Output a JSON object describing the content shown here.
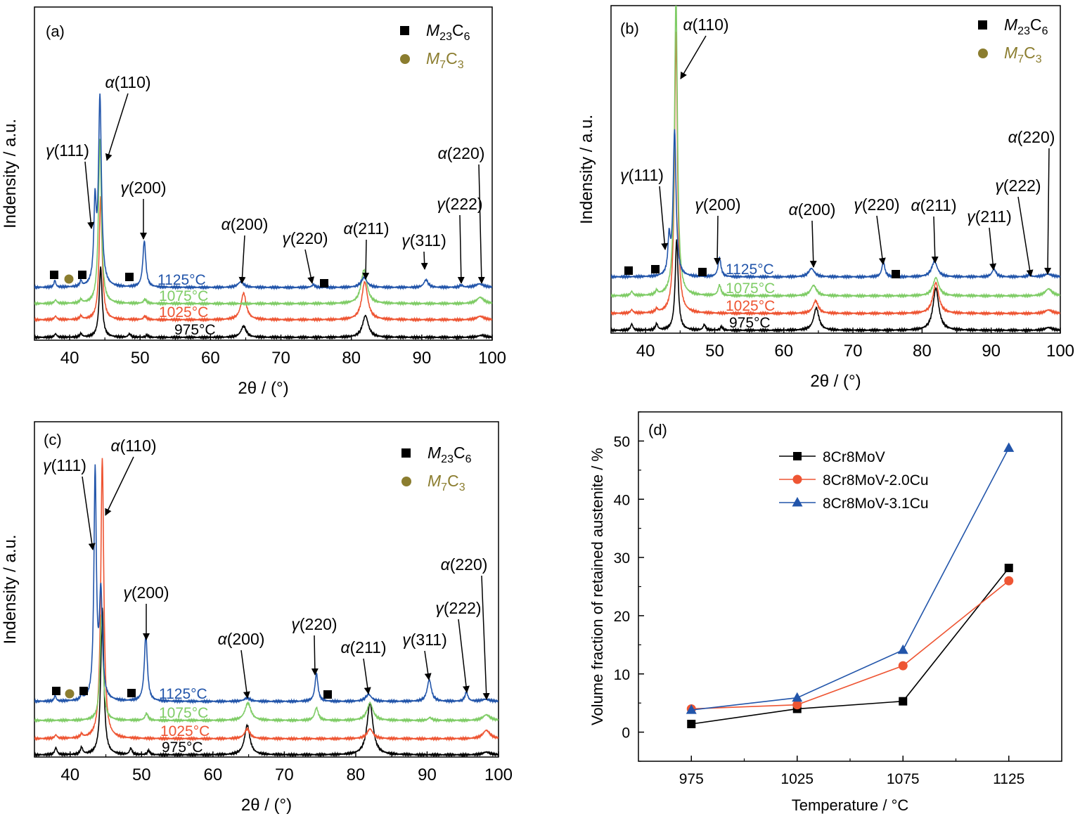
{
  "chart_data": [
    {
      "panel": "(a)",
      "type": "line",
      "xlabel": "2θ / (°)",
      "ylabel": "Indensity / a.u.",
      "xlim": [
        35,
        100
      ],
      "xticks": [
        "40",
        "50",
        "60",
        "70",
        "80",
        "90",
        "100"
      ],
      "legend": [
        {
          "symbol": "square",
          "label": "M23C6",
          "color": "#000000"
        },
        {
          "symbol": "circle",
          "label": "M7C3",
          "color": "#8B7D2F"
        }
      ],
      "series": [
        {
          "name": "975°C",
          "color": "#000000",
          "peaks": [
            [
              44.4,
              100,
              0.25
            ],
            [
              64.7,
              16,
              0.45
            ],
            [
              82.0,
              31,
              0.5
            ],
            [
              38.0,
              5,
              0.2
            ],
            [
              41.6,
              5,
              0.2
            ],
            [
              48.5,
              5,
              0.2
            ],
            [
              51.0,
              3,
              0.2
            ],
            [
              98.5,
              3,
              0.6
            ]
          ]
        },
        {
          "name": "1025°C",
          "color": "#EE5533",
          "peaks": [
            [
              44.4,
              175,
              0.25
            ],
            [
              64.7,
              38,
              0.45
            ],
            [
              81.9,
              54,
              0.5
            ],
            [
              50.7,
              5,
              0.25
            ],
            [
              98.3,
              5,
              0.6
            ],
            [
              38.0,
              5,
              0.2
            ],
            [
              41.6,
              5,
              0.2
            ]
          ]
        },
        {
          "name": "1075°C",
          "color": "#7FCC66",
          "peaks": [
            [
              44.3,
              235,
              0.25
            ],
            [
              81.8,
              48,
              0.5
            ],
            [
              98.3,
              9,
              0.6
            ],
            [
              50.7,
              6,
              0.25
            ],
            [
              38.0,
              5,
              0.2
            ],
            [
              41.6,
              5,
              0.2
            ]
          ]
        },
        {
          "name": "1125°C",
          "color": "#2255AA",
          "peaks": [
            [
              44.3,
              268,
              0.25
            ],
            [
              43.6,
              110,
              0.2
            ],
            [
              50.6,
              66,
              0.25
            ],
            [
              64.3,
              8,
              0.5
            ],
            [
              74.6,
              4,
              0.25
            ],
            [
              81.8,
              14,
              0.5
            ],
            [
              90.6,
              11,
              0.35
            ],
            [
              95.6,
              3,
              0.3
            ],
            [
              98.2,
              5,
              0.7
            ],
            [
              37.9,
              10,
              0.15
            ],
            [
              41.6,
              8,
              0.15
            ]
          ]
        }
      ],
      "annotations": [
        {
          "text": "α(110)",
          "x": 45.0
        },
        {
          "text": "γ(111)",
          "x": 43.6
        },
        {
          "text": "γ(200)",
          "x": 50.6
        },
        {
          "text": "α(200)",
          "x": 64.5
        },
        {
          "text": "γ(220)",
          "x": 74.6
        },
        {
          "text": "α(211)",
          "x": 81.8
        },
        {
          "text": "γ(311)",
          "x": 90.6
        },
        {
          "text": "γ(222)",
          "x": 95.6
        },
        {
          "text": "α(220)",
          "x": 98.4
        }
      ]
    },
    {
      "panel": "(b)",
      "type": "line",
      "xlabel": "2θ / (°)",
      "ylabel": "Indensity / a.u.",
      "xlim": [
        35,
        100
      ],
      "xticks": [
        "40",
        "50",
        "60",
        "70",
        "80",
        "90",
        "100"
      ],
      "legend": [
        {
          "symbol": "square",
          "label": "M23C6",
          "color": "#000000"
        },
        {
          "symbol": "circle",
          "label": "M7C3",
          "color": "#8B7D2F"
        }
      ],
      "series": [
        {
          "name": "975°C",
          "color": "#000000",
          "peaks": [
            [
              44.5,
              130,
              0.25
            ],
            [
              64.7,
              32,
              0.45
            ],
            [
              82.0,
              60,
              0.5
            ],
            [
              38.0,
              9,
              0.2
            ],
            [
              41.6,
              9,
              0.2
            ],
            [
              48.5,
              8,
              0.2
            ],
            [
              51.0,
              5,
              0.2
            ],
            [
              98.3,
              4,
              0.6
            ]
          ]
        },
        {
          "name": "1025°C",
          "color": "#EE5533",
          "peaks": [
            [
              44.4,
              400,
              0.25
            ],
            [
              64.6,
              18,
              0.45
            ],
            [
              82.0,
              44,
              0.5
            ],
            [
              38.0,
              5,
              0.2
            ],
            [
              41.6,
              5,
              0.2
            ],
            [
              98.3,
              5,
              0.6
            ]
          ]
        },
        {
          "name": "1075°C",
          "color": "#7FCC66",
          "peaks": [
            [
              44.4,
              430,
              0.25
            ],
            [
              64.3,
              15,
              0.5
            ],
            [
              82.0,
              26,
              0.5
            ],
            [
              50.7,
              15,
              0.25
            ],
            [
              98.3,
              10,
              0.6
            ],
            [
              38.0,
              6,
              0.2
            ],
            [
              41.6,
              6,
              0.2
            ]
          ]
        },
        {
          "name": "1125°C",
          "color": "#2255AA",
          "peaks": [
            [
              44.2,
              207,
              0.25
            ],
            [
              43.4,
              50,
              0.2
            ],
            [
              50.7,
              27,
              0.25
            ],
            [
              64.0,
              12,
              0.5
            ],
            [
              74.4,
              22,
              0.25
            ],
            [
              81.8,
              22,
              0.5
            ],
            [
              90.4,
              11,
              0.35
            ],
            [
              95.5,
              3,
              0.3
            ],
            [
              98.2,
              4,
              0.7
            ]
          ]
        }
      ],
      "annotations": [
        {
          "text": "α(110)",
          "x": 44.6
        },
        {
          "text": "γ(111)",
          "x": 43.3
        },
        {
          "text": "γ(200)",
          "x": 50.7
        },
        {
          "text": "α(200)",
          "x": 64.3
        },
        {
          "text": "γ(220)",
          "x": 74.4
        },
        {
          "text": "α(211)",
          "x": 81.9
        },
        {
          "text": "γ(211)",
          "x": 90.3
        },
        {
          "text": "γ(222)",
          "x": 95.6
        },
        {
          "text": "α(220)",
          "x": 98.3
        }
      ]
    },
    {
      "panel": "(c)",
      "type": "line",
      "xlabel": "2θ / (°)",
      "ylabel": "Indensity / a.u.",
      "xlim": [
        35,
        100
      ],
      "xticks": [
        "40",
        "50",
        "60",
        "70",
        "80",
        "90",
        "100"
      ],
      "legend": [
        {
          "symbol": "square",
          "label": "M23C6",
          "color": "#000000"
        },
        {
          "symbol": "circle",
          "label": "M7C3",
          "color": "#8B7D2F"
        }
      ],
      "series": [
        {
          "name": "975°C",
          "color": "#000000",
          "peaks": [
            [
              44.5,
              210,
              0.25
            ],
            [
              64.8,
              42,
              0.45
            ],
            [
              82.0,
              74,
              0.5
            ],
            [
              38.0,
              10,
              0.2
            ],
            [
              41.6,
              10,
              0.2
            ],
            [
              48.5,
              9,
              0.2
            ],
            [
              51.0,
              6,
              0.2
            ],
            [
              98.3,
              4,
              0.6
            ]
          ]
        },
        {
          "name": "1025°C",
          "color": "#EE5533",
          "peaks": [
            [
              44.5,
              400,
              0.25
            ],
            [
              64.8,
              14,
              0.45
            ],
            [
              82.0,
              14,
              0.5
            ],
            [
              38.0,
              5,
              0.2
            ],
            [
              41.6,
              5,
              0.2
            ],
            [
              98.3,
              12,
              0.6
            ]
          ]
        },
        {
          "name": "1075°C",
          "color": "#7FCC66",
          "peaks": [
            [
              44.4,
              150,
              0.25
            ],
            [
              64.9,
              25,
              0.5
            ],
            [
              74.5,
              18,
              0.3
            ],
            [
              82.0,
              25,
              0.5
            ],
            [
              50.7,
              10,
              0.25
            ],
            [
              98.3,
              8,
              0.6
            ],
            [
              90.4,
              4,
              0.3
            ]
          ]
        },
        {
          "name": "1125°C",
          "color": "#2255AA",
          "peaks": [
            [
              44.3,
              150,
              0.25
            ],
            [
              43.5,
              325,
              0.2
            ],
            [
              50.6,
              95,
              0.25
            ],
            [
              64.8,
              5,
              0.5
            ],
            [
              74.5,
              40,
              0.25
            ],
            [
              81.8,
              10,
              0.5
            ],
            [
              90.3,
              31,
              0.35
            ],
            [
              95.5,
              13,
              0.25
            ],
            [
              98.2,
              3,
              0.7
            ],
            [
              37.9,
              8,
              0.15
            ],
            [
              41.6,
              8,
              0.15
            ]
          ]
        }
      ],
      "annotations": [
        {
          "text": "α(110)",
          "x": 45.0
        },
        {
          "text": "γ(111)",
          "x": 43.5
        },
        {
          "text": "γ(200)",
          "x": 50.6
        },
        {
          "text": "α(200)",
          "x": 65.0
        },
        {
          "text": "γ(220)",
          "x": 74.6
        },
        {
          "text": "α(211)",
          "x": 82.0
        },
        {
          "text": "γ(311)",
          "x": 90.3
        },
        {
          "text": "γ(222)",
          "x": 95.5
        },
        {
          "text": "α(220)",
          "x": 98.4
        }
      ]
    },
    {
      "panel": "(d)",
      "type": "line",
      "xlabel": "Temperature / °C",
      "ylabel": "Volume fraction of retained austenite / %",
      "categories": [
        "975",
        "1025",
        "1075",
        "1125"
      ],
      "x": [
        975,
        1025,
        1075,
        1125
      ],
      "xlim": [
        950,
        1150
      ],
      "ylim": [
        -5,
        55
      ],
      "yticks": [
        "0",
        "10",
        "20",
        "30",
        "40",
        "50"
      ],
      "legend_position": "top-left",
      "series": [
        {
          "name": "8Cr8MoV",
          "color": "#000000",
          "marker": "square",
          "values": [
            1.4,
            4.0,
            5.3,
            28.2
          ]
        },
        {
          "name": "8Cr8MoV-2.0Cu",
          "color": "#EE5533",
          "marker": "circle",
          "values": [
            4.0,
            4.7,
            11.4,
            26.0
          ]
        },
        {
          "name": "8Cr8MoV-3.1Cu",
          "color": "#2255AA",
          "marker": "triangle",
          "values": [
            3.8,
            5.9,
            14.1,
            48.8
          ]
        }
      ]
    }
  ]
}
